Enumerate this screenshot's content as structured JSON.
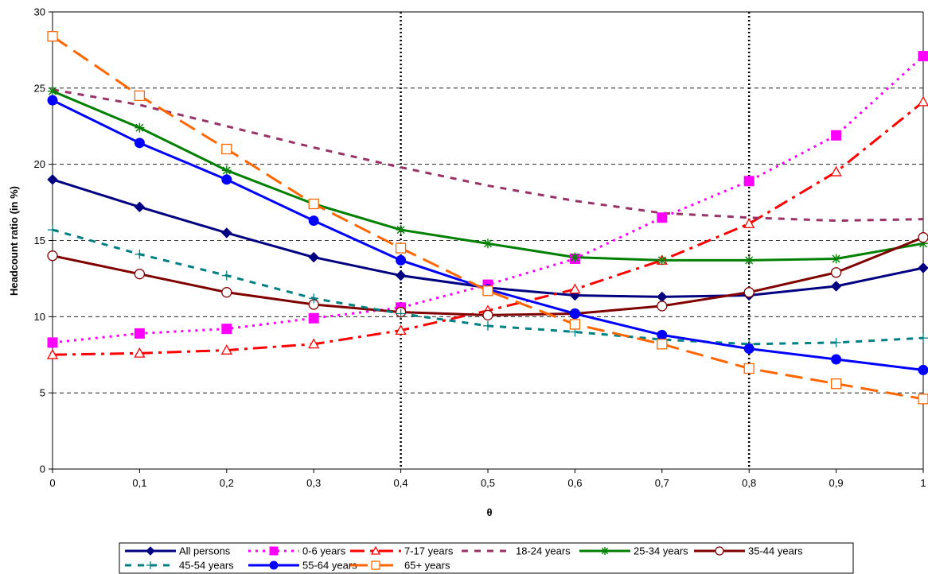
{
  "chart_data": {
    "type": "line",
    "xlabel": "θ",
    "ylabel": "Headcount ratio (in %)",
    "x": [
      0,
      0.1,
      0.2,
      0.3,
      0.4,
      0.5,
      0.6,
      0.7,
      0.8,
      0.9,
      1
    ],
    "x_tick_labels": [
      "0",
      "0,1",
      "0,2",
      "0,3",
      "0,4",
      "0,5",
      "0,6",
      "0,7",
      "0,8",
      "0,9",
      "1"
    ],
    "ylim": [
      0,
      30
    ],
    "y_ticks": [
      0,
      5,
      10,
      15,
      20,
      25,
      30
    ],
    "grid": "horizontal dashed",
    "reference_lines_x": [
      0.4,
      0.8
    ],
    "legend_position": "bottom",
    "series": [
      {
        "name": "All persons",
        "color": "#000080",
        "dash": "solid",
        "marker": "diamond",
        "values": [
          19.0,
          17.2,
          15.5,
          13.9,
          12.7,
          11.9,
          11.4,
          11.3,
          11.4,
          12.0,
          13.2
        ]
      },
      {
        "name": "0-6 years",
        "color": "#FF00FF",
        "dash": "dotted",
        "marker": "square-filled",
        "values": [
          8.3,
          8.9,
          9.2,
          9.9,
          10.6,
          12.1,
          13.8,
          16.5,
          18.9,
          21.9,
          27.1
        ]
      },
      {
        "name": "7-17 years",
        "color": "#FF0000",
        "dash": "dashdot",
        "marker": "triangle-open",
        "values": [
          7.5,
          7.6,
          7.8,
          8.2,
          9.1,
          10.4,
          11.8,
          13.7,
          16.1,
          19.5,
          24.1
        ]
      },
      {
        "name": "18-24 years",
        "color": "#993366",
        "dash": "dashed",
        "marker": "none",
        "values": [
          24.9,
          23.9,
          22.5,
          21.1,
          19.8,
          18.6,
          17.6,
          16.8,
          16.5,
          16.3,
          16.4
        ]
      },
      {
        "name": "25-34 years",
        "color": "#008000",
        "dash": "solid",
        "marker": "star",
        "values": [
          24.8,
          22.4,
          19.6,
          17.4,
          15.7,
          14.8,
          13.9,
          13.7,
          13.7,
          13.8,
          14.8
        ]
      },
      {
        "name": "35-44 years",
        "color": "#800000",
        "dash": "solid",
        "marker": "circle-open",
        "values": [
          14.0,
          12.8,
          11.6,
          10.8,
          10.3,
          10.1,
          10.2,
          10.7,
          11.6,
          12.9,
          15.2
        ]
      },
      {
        "name": "45-54 years",
        "color": "#008080",
        "dash": "dashed",
        "marker": "plus",
        "values": [
          15.7,
          14.1,
          12.7,
          11.2,
          10.2,
          9.4,
          9.0,
          8.5,
          8.2,
          8.3,
          8.6
        ]
      },
      {
        "name": "55-64 years",
        "color": "#0000FF",
        "dash": "solid",
        "marker": "circle-filled",
        "values": [
          24.2,
          21.4,
          19.0,
          16.3,
          13.7,
          11.8,
          10.2,
          8.8,
          7.9,
          7.2,
          6.5
        ]
      },
      {
        "name": "65+ years",
        "color": "#FF6600",
        "dash": "longdash",
        "marker": "square-open",
        "values": [
          28.4,
          24.5,
          21.0,
          17.4,
          14.5,
          11.7,
          9.5,
          8.2,
          6.6,
          5.6,
          4.6
        ]
      }
    ]
  }
}
